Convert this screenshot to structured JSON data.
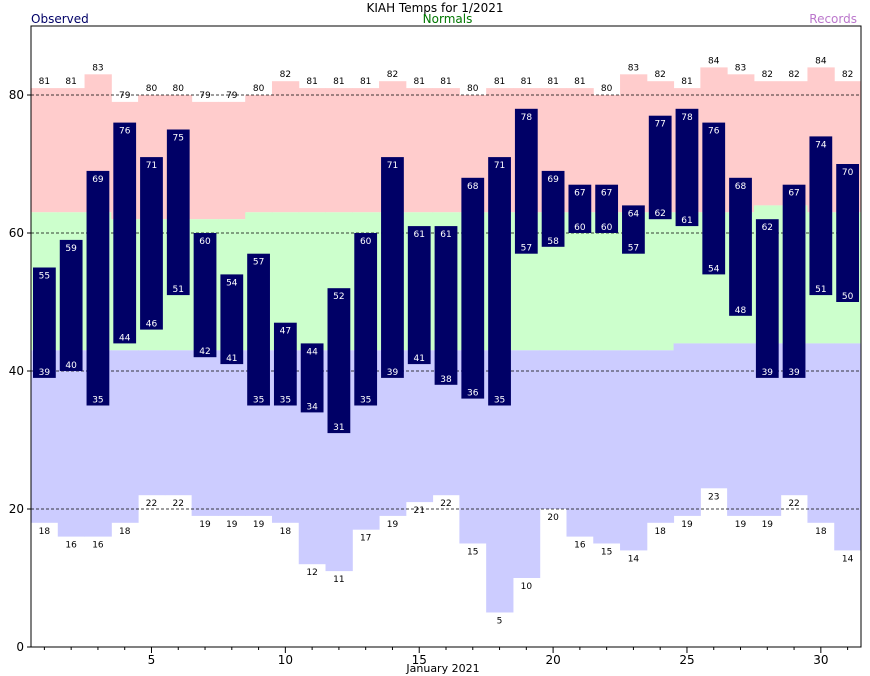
{
  "chart_data": {
    "type": "bar",
    "title": "KIAH Temps for 1/2021",
    "xlabel": "January 2021",
    "ylabel": "",
    "xlim": [
      0.5,
      31.5
    ],
    "ylim": [
      0,
      90
    ],
    "x_ticks": [
      5,
      10,
      15,
      20,
      25,
      30
    ],
    "y_ticks": [
      0,
      20,
      40,
      60,
      80
    ],
    "grid": "dashed horizontal lines at 20, 40, 60, 80",
    "legend": {
      "observed": "Observed",
      "normals": "Normals",
      "records": "Records"
    },
    "colors": {
      "observed": "#000066",
      "record_high": "#ffcccc",
      "normal": "#ccffcc",
      "record_low": "#ccccff",
      "observed_label": "#000066",
      "normals_label": "#007700",
      "records_label": "#bb77cc",
      "bar_text": "#ffffff"
    },
    "days": [
      1,
      2,
      3,
      4,
      5,
      6,
      7,
      8,
      9,
      10,
      11,
      12,
      13,
      14,
      15,
      16,
      17,
      18,
      19,
      20,
      21,
      22,
      23,
      24,
      25,
      26,
      27,
      28,
      29,
      30,
      31
    ],
    "observed_high": [
      55,
      59,
      69,
      76,
      71,
      75,
      60,
      54,
      57,
      47,
      44,
      52,
      60,
      71,
      61,
      61,
      68,
      71,
      78,
      69,
      67,
      67,
      64,
      77,
      78,
      76,
      68,
      62,
      67,
      74,
      70
    ],
    "observed_low": [
      39,
      40,
      35,
      44,
      46,
      51,
      42,
      41,
      35,
      35,
      34,
      31,
      35,
      39,
      41,
      38,
      36,
      35,
      57,
      58,
      60,
      60,
      57,
      62,
      61,
      54,
      48,
      39,
      39,
      51,
      50
    ],
    "normal_high": [
      63,
      63,
      63,
      62,
      62,
      62,
      62,
      62,
      63,
      63,
      63,
      63,
      63,
      63,
      63,
      63,
      63,
      63,
      63,
      63,
      63,
      63,
      63,
      63,
      63,
      63,
      63,
      64,
      64,
      63,
      63
    ],
    "normal_low": [
      43,
      43,
      43,
      43,
      43,
      43,
      43,
      43,
      43,
      43,
      43,
      43,
      43,
      43,
      43,
      43,
      43,
      43,
      43,
      43,
      43,
      43,
      43,
      43,
      44,
      44,
      44,
      44,
      44,
      44,
      44
    ],
    "record_high": [
      81,
      81,
      83,
      79,
      80,
      80,
      79,
      79,
      80,
      82,
      81,
      81,
      81,
      82,
      81,
      81,
      80,
      81,
      81,
      81,
      81,
      80,
      83,
      82,
      81,
      84,
      83,
      82,
      82,
      84,
      82
    ],
    "record_low": [
      18,
      16,
      16,
      18,
      22,
      22,
      19,
      19,
      19,
      18,
      12,
      11,
      17,
      19,
      21,
      22,
      15,
      5,
      10,
      20,
      16,
      15,
      14,
      18,
      19,
      23,
      19,
      19,
      22,
      18,
      14
    ]
  }
}
